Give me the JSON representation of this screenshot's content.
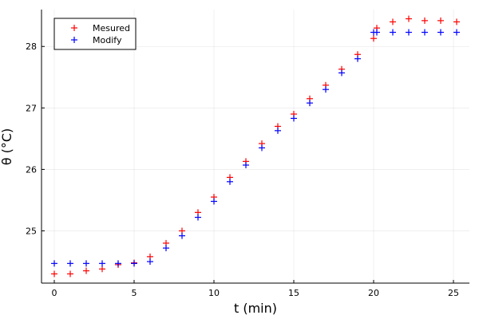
{
  "chart_data": {
    "type": "scatter",
    "title": "",
    "xlabel": "t  (min)",
    "ylabel": "θ (°C)",
    "xlim": [
      -0.8,
      26.0
    ],
    "ylim": [
      24.15,
      28.6
    ],
    "xticks": [
      0,
      5,
      10,
      15,
      20,
      25
    ],
    "yticks": [
      25,
      26,
      27,
      28
    ],
    "grid": true,
    "legend_position": "top-left",
    "series": [
      {
        "name": "Mesured",
        "color": "#ff0000",
        "marker": "cross",
        "x": [
          0,
          1,
          2,
          3,
          4,
          5,
          6,
          7,
          8,
          9,
          10,
          11,
          12,
          13,
          14,
          15,
          16,
          17,
          18,
          19,
          20,
          20.2,
          21.2,
          22.2,
          23.2,
          24.2,
          25.2
        ],
        "y": [
          24.3,
          24.3,
          24.35,
          24.38,
          24.45,
          24.48,
          24.58,
          24.8,
          25.0,
          25.3,
          25.55,
          25.87,
          26.13,
          26.42,
          26.7,
          26.9,
          27.15,
          27.37,
          27.63,
          27.87,
          28.13,
          28.3,
          28.4,
          28.45,
          28.42,
          28.42,
          28.4
        ]
      },
      {
        "name": "Modify",
        "color": "#0000ff",
        "marker": "cross",
        "x": [
          0,
          1,
          2,
          3,
          4,
          5,
          6,
          7,
          8,
          9,
          10,
          11,
          12,
          13,
          14,
          15,
          16,
          17,
          18,
          19,
          20,
          20.2,
          21.2,
          22.2,
          23.2,
          24.2,
          25.2
        ],
        "y": [
          24.47,
          24.47,
          24.47,
          24.47,
          24.47,
          24.47,
          24.5,
          24.72,
          24.92,
          25.22,
          25.48,
          25.8,
          26.07,
          26.35,
          26.63,
          26.83,
          27.08,
          27.3,
          27.57,
          27.8,
          28.23,
          28.23,
          28.23,
          28.23,
          28.23,
          28.23,
          28.23
        ]
      }
    ]
  }
}
